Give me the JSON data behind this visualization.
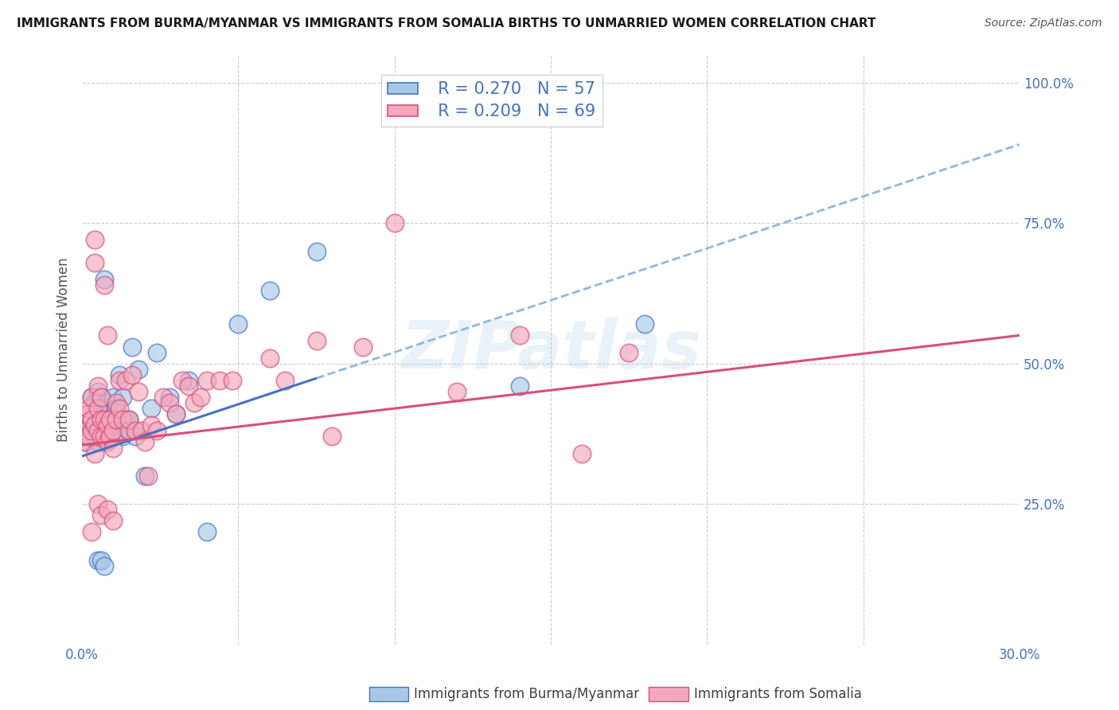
{
  "title": "IMMIGRANTS FROM BURMA/MYANMAR VS IMMIGRANTS FROM SOMALIA BIRTHS TO UNMARRIED WOMEN CORRELATION CHART",
  "source": "Source: ZipAtlas.com",
  "xlabel_bottom": [
    "Immigrants from Burma/Myanmar",
    "Immigrants from Somalia"
  ],
  "ylabel": "Births to Unmarried Women",
  "xlim": [
    0.0,
    0.3
  ],
  "ylim": [
    0.0,
    1.05
  ],
  "xticks": [
    0.0,
    0.05,
    0.1,
    0.15,
    0.2,
    0.25,
    0.3
  ],
  "xticklabels": [
    "0.0%",
    "",
    "",
    "",
    "",
    "",
    "30.0%"
  ],
  "yticks_right": [
    0.0,
    0.25,
    0.5,
    0.75,
    1.0
  ],
  "yticklabels_right": [
    "",
    "25.0%",
    "50.0%",
    "75.0%",
    "100.0%"
  ],
  "R_burma": 0.27,
  "N_burma": 57,
  "R_somalia": 0.209,
  "N_somalia": 69,
  "color_burma": "#a8c8e8",
  "color_somalia": "#f4a8bc",
  "color_line_burma": "#4472c4",
  "color_line_somalia": "#d94f7a",
  "color_line_burma_dashed": "#90b8e0",
  "color_text_blue": "#4472c4",
  "color_text_pink": "#d94f7a",
  "color_grid": "#cccccc",
  "color_title": "#1a1a1a",
  "color_source": "#555555",
  "watermark_text": "ZIPatlas",
  "line_burma_solid_end": 0.075,
  "line_burma_start": 0.001,
  "line_slope_burma": 1.85,
  "line_intercept_burma": 0.335,
  "line_slope_somalia": 0.65,
  "line_intercept_somalia": 0.355,
  "burma_x": [
    0.0008,
    0.001,
    0.0015,
    0.002,
    0.002,
    0.003,
    0.003,
    0.003,
    0.004,
    0.004,
    0.004,
    0.005,
    0.005,
    0.005,
    0.005,
    0.006,
    0.006,
    0.006,
    0.007,
    0.007,
    0.007,
    0.008,
    0.008,
    0.008,
    0.009,
    0.009,
    0.01,
    0.01,
    0.01,
    0.011,
    0.011,
    0.012,
    0.012,
    0.013,
    0.013,
    0.014,
    0.015,
    0.015,
    0.016,
    0.017,
    0.018,
    0.02,
    0.022,
    0.024,
    0.028,
    0.03,
    0.034,
    0.04,
    0.05,
    0.06,
    0.075,
    0.14,
    0.18,
    0.005,
    0.005,
    0.006,
    0.007
  ],
  "burma_y": [
    0.37,
    0.36,
    0.38,
    0.37,
    0.41,
    0.38,
    0.4,
    0.44,
    0.37,
    0.39,
    0.43,
    0.36,
    0.38,
    0.41,
    0.45,
    0.37,
    0.4,
    0.44,
    0.36,
    0.39,
    0.65,
    0.37,
    0.4,
    0.43,
    0.38,
    0.41,
    0.37,
    0.4,
    0.44,
    0.39,
    0.42,
    0.38,
    0.48,
    0.44,
    0.37,
    0.4,
    0.38,
    0.4,
    0.53,
    0.37,
    0.49,
    0.3,
    0.42,
    0.52,
    0.44,
    0.41,
    0.47,
    0.2,
    0.57,
    0.63,
    0.7,
    0.46,
    0.57,
    0.36,
    0.15,
    0.15,
    0.14
  ],
  "somalia_x": [
    0.0008,
    0.001,
    0.0015,
    0.002,
    0.002,
    0.003,
    0.003,
    0.003,
    0.004,
    0.004,
    0.004,
    0.005,
    0.005,
    0.005,
    0.006,
    0.006,
    0.006,
    0.007,
    0.007,
    0.007,
    0.008,
    0.008,
    0.008,
    0.009,
    0.009,
    0.01,
    0.01,
    0.011,
    0.011,
    0.012,
    0.012,
    0.013,
    0.014,
    0.015,
    0.015,
    0.016,
    0.017,
    0.018,
    0.019,
    0.02,
    0.021,
    0.022,
    0.024,
    0.026,
    0.028,
    0.03,
    0.032,
    0.034,
    0.036,
    0.038,
    0.04,
    0.044,
    0.048,
    0.06,
    0.065,
    0.075,
    0.08,
    0.09,
    0.1,
    0.12,
    0.14,
    0.16,
    0.175,
    0.003,
    0.004,
    0.005,
    0.006,
    0.008,
    0.01
  ],
  "somalia_y": [
    0.38,
    0.36,
    0.41,
    0.37,
    0.42,
    0.38,
    0.4,
    0.44,
    0.72,
    0.68,
    0.39,
    0.38,
    0.42,
    0.46,
    0.37,
    0.4,
    0.44,
    0.64,
    0.37,
    0.4,
    0.36,
    0.39,
    0.55,
    0.37,
    0.4,
    0.38,
    0.35,
    0.4,
    0.43,
    0.42,
    0.47,
    0.4,
    0.47,
    0.38,
    0.4,
    0.48,
    0.38,
    0.45,
    0.38,
    0.36,
    0.3,
    0.39,
    0.38,
    0.44,
    0.43,
    0.41,
    0.47,
    0.46,
    0.43,
    0.44,
    0.47,
    0.47,
    0.47,
    0.51,
    0.47,
    0.54,
    0.37,
    0.53,
    0.75,
    0.45,
    0.55,
    0.34,
    0.52,
    0.2,
    0.34,
    0.25,
    0.23,
    0.24,
    0.22
  ]
}
